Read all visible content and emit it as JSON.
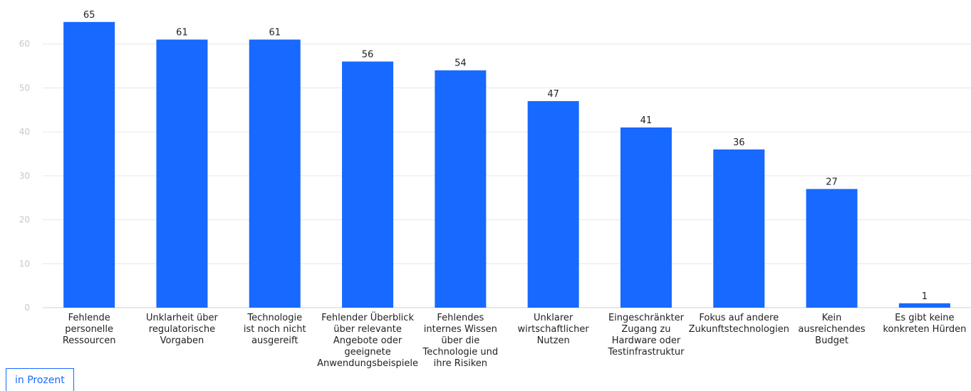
{
  "chart_data": {
    "type": "bar",
    "categories": [
      [
        "Fehlende",
        "personelle",
        "Ressourcen"
      ],
      [
        "Unklarheit über",
        "regulatorische",
        "Vorgaben"
      ],
      [
        "Technologie",
        "ist noch nicht",
        "ausgereift"
      ],
      [
        "Fehlender Überblick",
        "über relevante",
        "Angebote oder",
        "geeignete",
        "Anwendungsbeispiele"
      ],
      [
        "Fehlendes",
        "internes Wissen",
        "über die",
        "Technologie und",
        "ihre Risiken"
      ],
      [
        "Unklarer",
        "wirtschaftlicher",
        "Nutzen"
      ],
      [
        "Eingeschränkter",
        "Zugang zu",
        "Hardware oder",
        "Testinfrastruktur"
      ],
      [
        "Fokus auf andere",
        "Zukunftstechnologien"
      ],
      [
        "Kein",
        "ausreichendes",
        "Budget"
      ],
      [
        "Es gibt keine",
        "konkreten Hürden"
      ]
    ],
    "values": [
      65,
      61,
      61,
      56,
      54,
      47,
      41,
      36,
      27,
      1
    ],
    "ylim": [
      0,
      70
    ],
    "yticks": [
      0,
      10,
      20,
      30,
      40,
      50,
      60
    ],
    "grid": true,
    "bar_color": "#1769ff",
    "grid_color": "#e6e6e6",
    "tick_color": "#c8c8c8",
    "unit_label": "in Prozent"
  }
}
